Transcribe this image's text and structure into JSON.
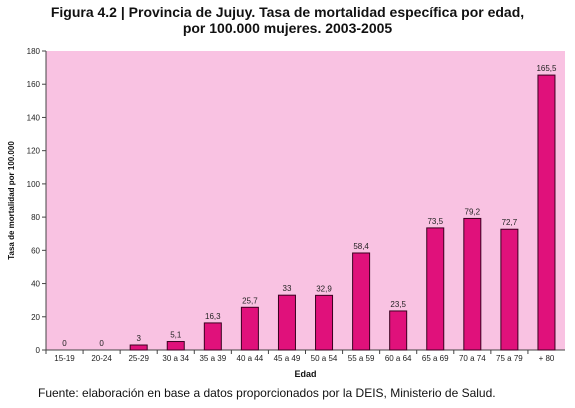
{
  "title_line1": "Figura 4.2 | Provincia de Jujuy. Tasa de mortalidad específica por edad,",
  "title_line2": "por 100.000 mujeres. 2003-2005",
  "source": "Fuente: elaboración en base a datos proporcionados por la DEIS, Ministerio de Salud.",
  "colors": {
    "plot_bg": "#f9c2e2",
    "bar": "#e0117b",
    "bar_outline": "#3a0020"
  },
  "chart_data": {
    "type": "bar",
    "categories": [
      "15-19",
      "20-24",
      "25-29",
      "30 a 34",
      "35 a 39",
      "40 a 44",
      "45 a 49",
      "50 a 54",
      "55 a 59",
      "60 a 64",
      "65 a 69",
      "70 a 74",
      "75 a 79",
      "+ 80"
    ],
    "values": [
      0,
      0,
      3,
      5.1,
      16.3,
      25.7,
      33,
      32.9,
      58.4,
      23.5,
      73.5,
      79.2,
      72.7,
      165.5
    ],
    "data_labels": [
      "0",
      "0",
      "3",
      "5,1",
      "16,3",
      "25,7",
      "33",
      "32,9",
      "58,4",
      "23,5",
      "73,5",
      "79,2",
      "72,7",
      "165,5"
    ],
    "xlabel": "Edad",
    "ylabel": "Tasa de mortalidad por 100.000",
    "ylim": [
      0,
      180
    ],
    "yticks": [
      0,
      20,
      40,
      60,
      80,
      100,
      120,
      140,
      160,
      180
    ],
    "grid": false,
    "legend": "none"
  }
}
